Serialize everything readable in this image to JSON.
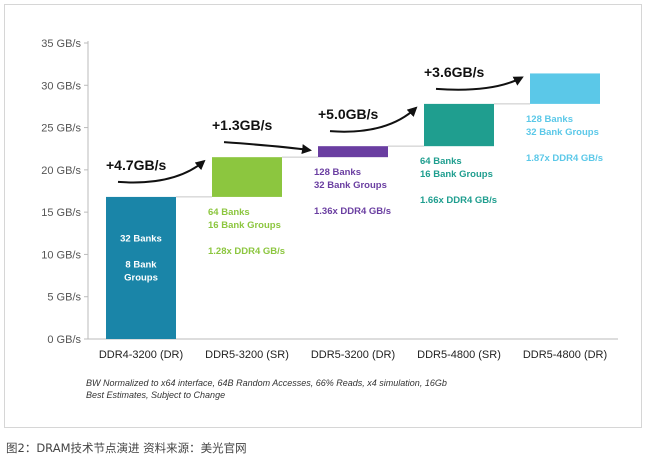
{
  "chart_data": {
    "type": "bar",
    "style": "floating waterfall",
    "ylim": [
      0,
      35
    ],
    "yticks": [
      "0 GB/s",
      "5 GB/s",
      "10 GB/s",
      "15 GB/s",
      "20 GB/s",
      "25 GB/s",
      "30 GB/s",
      "35 GB/s"
    ],
    "categories": [
      "DDR4-3200 (DR)",
      "DDR5-3200 (SR)",
      "DDR5-3200 (DR)",
      "DDR5-4800 (SR)",
      "DDR5-4800 (DR)"
    ],
    "bars": [
      {
        "category": "DDR4-3200 (DR)",
        "low": 0,
        "high": 16.8,
        "color": "#1a85a8",
        "labels": [
          "32 Banks",
          "",
          "8 Bank",
          "Groups"
        ],
        "label_color": "#ffffff"
      },
      {
        "category": "DDR5-3200 (SR)",
        "low": 16.8,
        "high": 21.5,
        "color": "#8cc63f",
        "labels": [
          "64 Banks",
          "16 Bank Groups",
          "",
          "1.28x DDR4 GB/s"
        ],
        "label_color": "#8cc63f"
      },
      {
        "category": "DDR5-3200 (DR)",
        "low": 21.5,
        "high": 22.8,
        "color": "#6a3ea1",
        "labels": [
          "128 Banks",
          "32 Bank Groups",
          "",
          "1.36x DDR4 GB/s"
        ],
        "label_color": "#6a3ea1"
      },
      {
        "category": "DDR5-4800 (SR)",
        "low": 22.8,
        "high": 27.8,
        "color": "#1f9e8f",
        "labels": [
          "64 Banks",
          "16 Bank Groups",
          "",
          "1.66x DDR4 GB/s"
        ],
        "label_color": "#1f9e8f"
      },
      {
        "category": "DDR5-4800 (DR)",
        "low": 27.8,
        "high": 31.4,
        "color": "#5bc8e8",
        "labels": [
          "128 Banks",
          "32 Bank Groups",
          "",
          "1.87x DDR4 GB/s"
        ],
        "label_color": "#5bc8e8"
      }
    ],
    "increments": [
      "+4.7GB/s",
      "+1.3GB/s",
      "+5.0GB/s",
      "+3.6GB/s"
    ],
    "footnotes": [
      "BW Normalized to x64 interface, 64B Random Accesses, 66% Reads, x4 simulation, 16Gb",
      "Best Estimates, Subject to Change"
    ]
  },
  "caption": "图2：DRAM技术节点演进  资料来源：美光官网"
}
